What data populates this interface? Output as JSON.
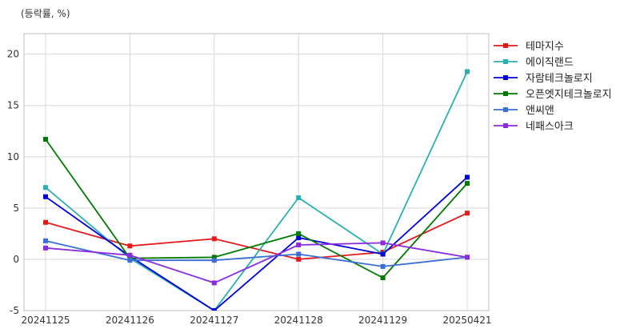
{
  "chart_data": {
    "type": "line",
    "unit_label": "(등락률, %)",
    "x": [
      "20241125",
      "20241126",
      "20241127",
      "20241128",
      "20241129",
      "20250421"
    ],
    "ylim": [
      -5,
      22
    ],
    "yticks": [
      -5,
      0,
      5,
      10,
      15,
      20
    ],
    "grid": true,
    "legend_position": "right",
    "series": [
      {
        "name": "테마지수",
        "color": "#e31a1c",
        "values": [
          3.6,
          1.3,
          2.0,
          0.0,
          0.7,
          4.5
        ]
      },
      {
        "name": "에이직랜드",
        "color": "#2ab0b0",
        "values": [
          7.0,
          0.1,
          -5.0,
          6.0,
          0.5,
          18.3
        ]
      },
      {
        "name": "자람테크놀로지",
        "color": "#0000dd",
        "values": [
          6.1,
          0.3,
          -5.0,
          2.1,
          0.5,
          8.0
        ]
      },
      {
        "name": "오픈엣지테크놀로지",
        "color": "#007a00",
        "values": [
          11.7,
          0.1,
          0.2,
          2.5,
          -1.8,
          7.4
        ]
      },
      {
        "name": "앤씨앤",
        "color": "#3a6fd8",
        "values": [
          1.8,
          -0.1,
          -0.1,
          0.5,
          -0.7,
          0.2
        ]
      },
      {
        "name": "네패스아크",
        "color": "#8a2be2",
        "values": [
          1.1,
          0.4,
          -2.3,
          1.4,
          1.6,
          0.2
        ]
      }
    ]
  }
}
